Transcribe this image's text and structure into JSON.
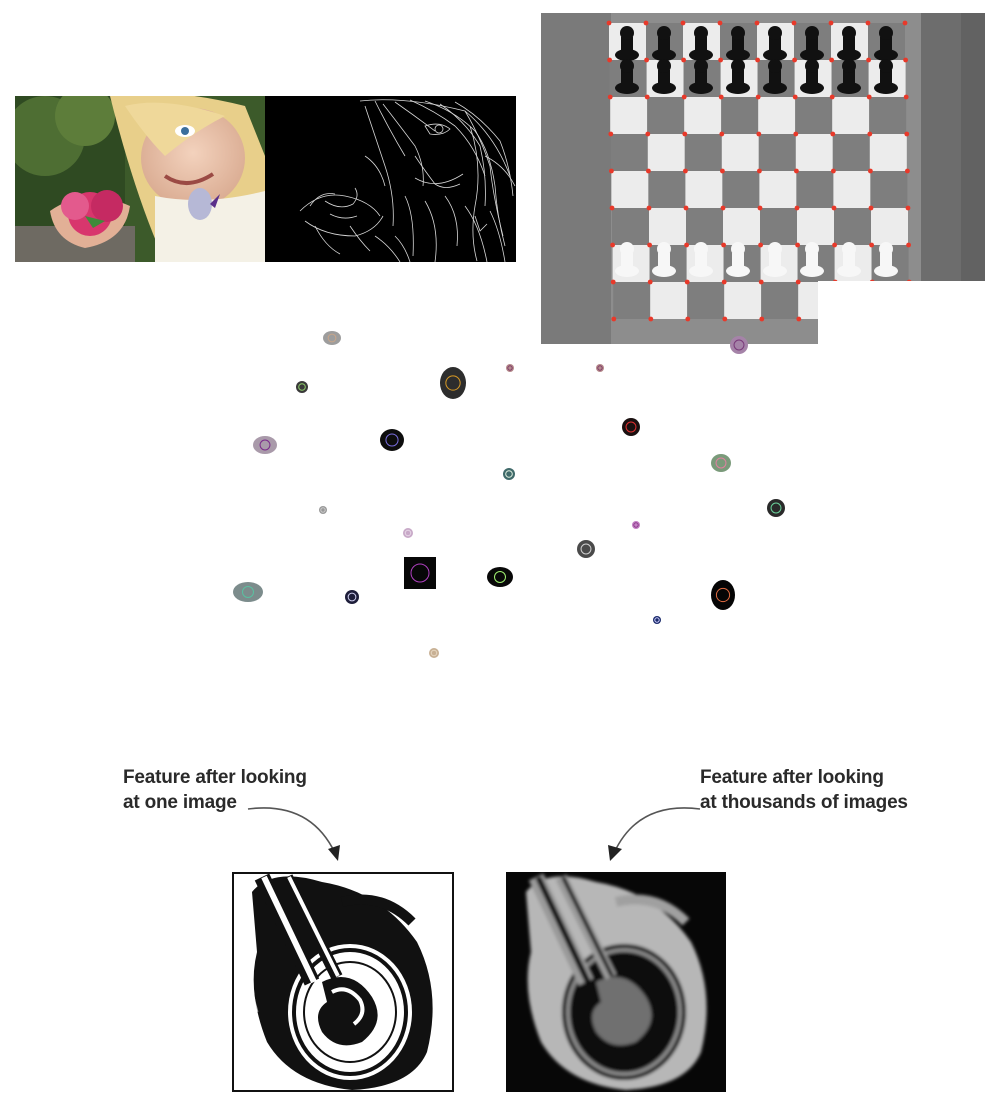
{
  "captions": {
    "left": "Feature after looking\nat one image",
    "right": "Feature after looking\nat thousands of images"
  },
  "icons": {
    "arrow_left": "curved-arrow-down-right-icon",
    "arrow_right": "curved-arrow-down-left-icon"
  },
  "colors": {
    "chess_corner": "#e8392a",
    "edge_line": "#f0f0f0"
  }
}
